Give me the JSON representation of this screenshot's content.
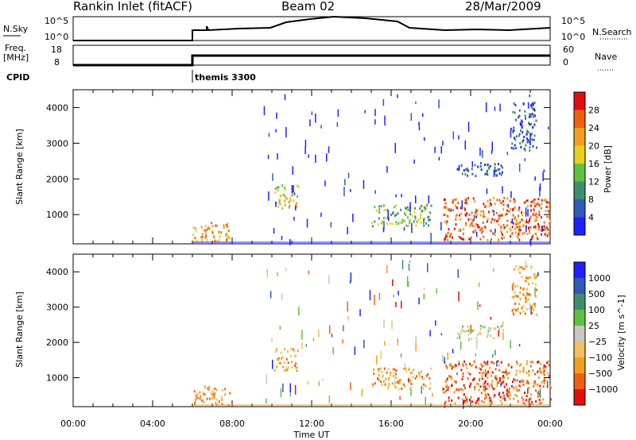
{
  "header": {
    "title": "Rankin Inlet (fitACF)",
    "beam": "Beam 02",
    "date": "28/Mar/2009"
  },
  "top_panels": {
    "nsky_label": "N.Sky",
    "nsky_ticks": [
      "10^5",
      "10^0"
    ],
    "nsearch_label": "N.Search",
    "nsearch_ticks": [
      "10^5",
      "10^0"
    ],
    "freq_label": "Freq.",
    "freq_unit": "[MHz]",
    "freq_ticks": [
      "18",
      "8"
    ],
    "nave_label": "Nave",
    "nave_ticks": [
      "60",
      "0"
    ],
    "cpid_label": "CPID",
    "cpid_value": "themis 3300"
  },
  "colors": {
    "power": [
      "#2020ff",
      "#2f5bb8",
      "#3f8f6f",
      "#60c040",
      "#e8d020",
      "#f0a020",
      "#f06010",
      "#e01010"
    ],
    "velocity": [
      "#e01010",
      "#f06010",
      "#f0a020",
      "#f2c060",
      "#c8c8c0",
      "#60c040",
      "#3f8f6f",
      "#2f5bb8",
      "#2020ff"
    ]
  },
  "chart_data": [
    {
      "type": "heatmap",
      "name": "power",
      "xlabel": "",
      "ylabel": "Slant Range [km]",
      "xlim": [
        0,
        24
      ],
      "ylim": [
        180,
        4500
      ],
      "yticks": [
        "1000",
        "2000",
        "3000",
        "4000"
      ],
      "colorbar_label": "Power [dB]",
      "colorbar_ticks": [
        "4",
        "8",
        "12",
        "16",
        "20",
        "24",
        "28"
      ],
      "regions": [
        {
          "t0": 6.0,
          "t1": 7.9,
          "r0": 250,
          "r1": 800,
          "level": 5
        },
        {
          "t0": 10.1,
          "t1": 11.3,
          "r0": 1200,
          "r1": 1850,
          "level": 4
        },
        {
          "t0": 15.0,
          "t1": 18.0,
          "r0": 700,
          "r1": 1300,
          "level": 3
        },
        {
          "t0": 18.6,
          "t1": 24.0,
          "r0": 300,
          "r1": 1500,
          "level": 6
        },
        {
          "t0": 19.3,
          "t1": 21.6,
          "r0": 2100,
          "r1": 2500,
          "level": 1
        },
        {
          "t0": 22.0,
          "t1": 23.3,
          "r0": 2800,
          "r1": 4200,
          "level": 1
        }
      ]
    },
    {
      "type": "heatmap",
      "name": "velocity",
      "xlabel": "Time UT",
      "ylabel": "Slant Range [km]",
      "xlim": [
        0,
        24
      ],
      "ylim": [
        180,
        4500
      ],
      "xticks": [
        "00:00",
        "04:00",
        "08:00",
        "12:00",
        "16:00",
        "20:00",
        "00:00"
      ],
      "yticks": [
        "1000",
        "2000",
        "3000",
        "4000"
      ],
      "colorbar_label": "Velocity [m s^-1]",
      "colorbar_ticks": [
        "1000",
        "500",
        "100",
        "25",
        "−25",
        "−100",
        "−500",
        "−1000"
      ],
      "regions": [
        {
          "t0": 6.0,
          "t1": 7.9,
          "r0": 250,
          "r1": 800,
          "level": 2
        },
        {
          "t0": 10.1,
          "t1": 11.3,
          "r0": 1200,
          "r1": 1850,
          "level": 2
        },
        {
          "t0": 15.0,
          "t1": 18.0,
          "r0": 700,
          "r1": 1300,
          "level": 2
        },
        {
          "t0": 18.6,
          "t1": 24.0,
          "r0": 300,
          "r1": 1500,
          "level": 1
        },
        {
          "t0": 19.3,
          "t1": 21.6,
          "r0": 2100,
          "r1": 2500,
          "level": 4
        },
        {
          "t0": 22.0,
          "t1": 23.3,
          "r0": 2800,
          "r1": 4200,
          "level": 2
        }
      ]
    }
  ]
}
